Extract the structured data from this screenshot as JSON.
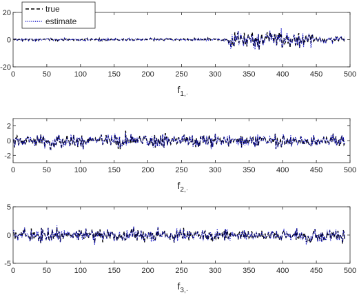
{
  "legend": {
    "true_label": "true",
    "estimate_label": "estimate"
  },
  "colors": {
    "true": "#000000",
    "estimate": "#1515c8",
    "axis": "#262626"
  },
  "chart_data": [
    {
      "type": "line",
      "xlabel_main": "f",
      "xlabel_sub": "1,·",
      "xlim": [
        0,
        500
      ],
      "ylim": [
        -20,
        20
      ],
      "xticks": [
        0,
        50,
        100,
        150,
        200,
        250,
        300,
        350,
        400,
        450,
        500
      ],
      "yticks": [
        -20,
        0,
        20
      ],
      "n_points": 492,
      "segments": [
        {
          "x_from": 1,
          "x_to": 320,
          "amplitude": 1.2
        },
        {
          "x_from": 320,
          "x_to": 355,
          "amplitude": 7
        },
        {
          "x_from": 355,
          "x_to": 445,
          "amplitude": 9
        },
        {
          "x_from": 445,
          "x_to": 492,
          "amplitude": 3
        }
      ],
      "series": [
        {
          "name": "true",
          "style": "dashed"
        },
        {
          "name": "estimate",
          "style": "dotted"
        }
      ]
    },
    {
      "type": "line",
      "xlabel_main": "f",
      "xlabel_sub": "2,·",
      "xlim": [
        0,
        500
      ],
      "ylim": [
        -3,
        3
      ],
      "xticks": [
        0,
        50,
        100,
        150,
        200,
        250,
        300,
        350,
        400,
        450,
        500
      ],
      "yticks": [
        -2,
        0,
        2
      ],
      "n_points": 492,
      "segments": [
        {
          "x_from": 1,
          "x_to": 492,
          "amplitude": 1.1
        }
      ],
      "series": [
        {
          "name": "true",
          "style": "dashed"
        },
        {
          "name": "estimate",
          "style": "dotted"
        }
      ]
    },
    {
      "type": "line",
      "xlabel_main": "f",
      "xlabel_sub": "3,·",
      "xlim": [
        0,
        500
      ],
      "ylim": [
        -5,
        5
      ],
      "xticks": [
        0,
        50,
        100,
        150,
        200,
        250,
        300,
        350,
        400,
        450,
        500
      ],
      "yticks": [
        -5,
        0,
        5
      ],
      "n_points": 492,
      "segments": [
        {
          "x_from": 1,
          "x_to": 492,
          "amplitude": 1.4
        }
      ],
      "series": [
        {
          "name": "true",
          "style": "dashed"
        },
        {
          "name": "estimate",
          "style": "dotted"
        }
      ]
    }
  ]
}
